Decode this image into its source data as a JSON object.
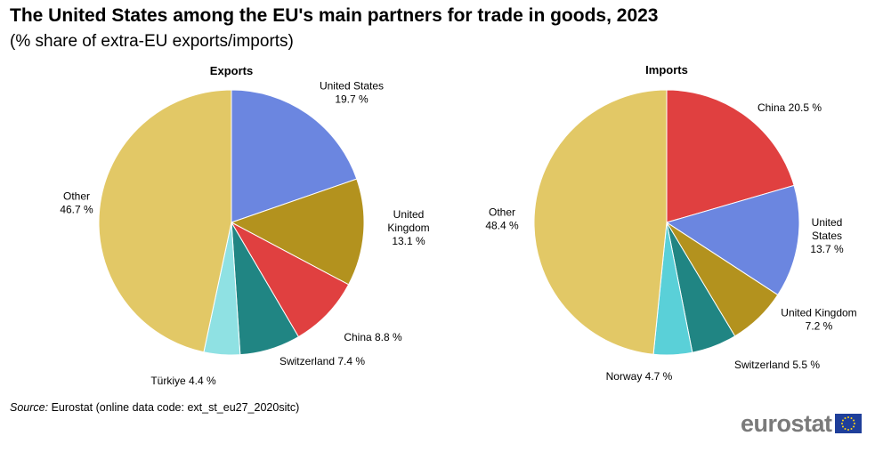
{
  "title": "The United States among the EU's main partners for trade in goods, 2023",
  "subtitle": "(% share of extra-EU exports/imports)",
  "source": {
    "label": "Source:",
    "text": "Eurostat (online data code: ext_st_eu27_2020sitc)"
  },
  "logo": {
    "text": "eurostat"
  },
  "chart_data": [
    {
      "type": "pie",
      "title": "Exports",
      "slices": [
        {
          "name": "United States",
          "value": 19.7,
          "label": [
            "United States",
            "19.7 %"
          ],
          "color": "#6b86e0"
        },
        {
          "name": "United Kingdom",
          "value": 13.1,
          "label": [
            "United",
            "Kingdom",
            "13.1 %"
          ],
          "color": "#b3921e"
        },
        {
          "name": "China",
          "value": 8.8,
          "label": [
            "China 8.8 %"
          ],
          "color": "#e04040"
        },
        {
          "name": "Switzerland",
          "value": 7.4,
          "label": [
            "Switzerland 7.4 %"
          ],
          "color": "#208583"
        },
        {
          "name": "Türkiye",
          "value": 4.4,
          "label": [
            "Türkiye 4.4 %"
          ],
          "color": "#8fe1e3"
        },
        {
          "name": "Other",
          "value": 46.7,
          "label": [
            "Other",
            "46.7 %"
          ],
          "color": "#e2c866"
        }
      ]
    },
    {
      "type": "pie",
      "title": "Imports",
      "slices": [
        {
          "name": "China",
          "value": 20.5,
          "label": [
            "China 20.5 %"
          ],
          "color": "#e04040"
        },
        {
          "name": "United States",
          "value": 13.7,
          "label": [
            "United",
            "States",
            "13.7 %"
          ],
          "color": "#6b86e0"
        },
        {
          "name": "United Kingdom",
          "value": 7.2,
          "label": [
            "United Kingdom",
            "7.2 %"
          ],
          "color": "#b3921e"
        },
        {
          "name": "Switzerland",
          "value": 5.5,
          "label": [
            "Switzerland 5.5 %"
          ],
          "color": "#208583"
        },
        {
          "name": "Norway",
          "value": 4.7,
          "label": [
            "Norway 4.7 %"
          ],
          "color": "#5ad0d8"
        },
        {
          "name": "Other",
          "value": 48.4,
          "label": [
            "Other",
            "48.4 %"
          ],
          "color": "#e2c866"
        }
      ]
    }
  ]
}
